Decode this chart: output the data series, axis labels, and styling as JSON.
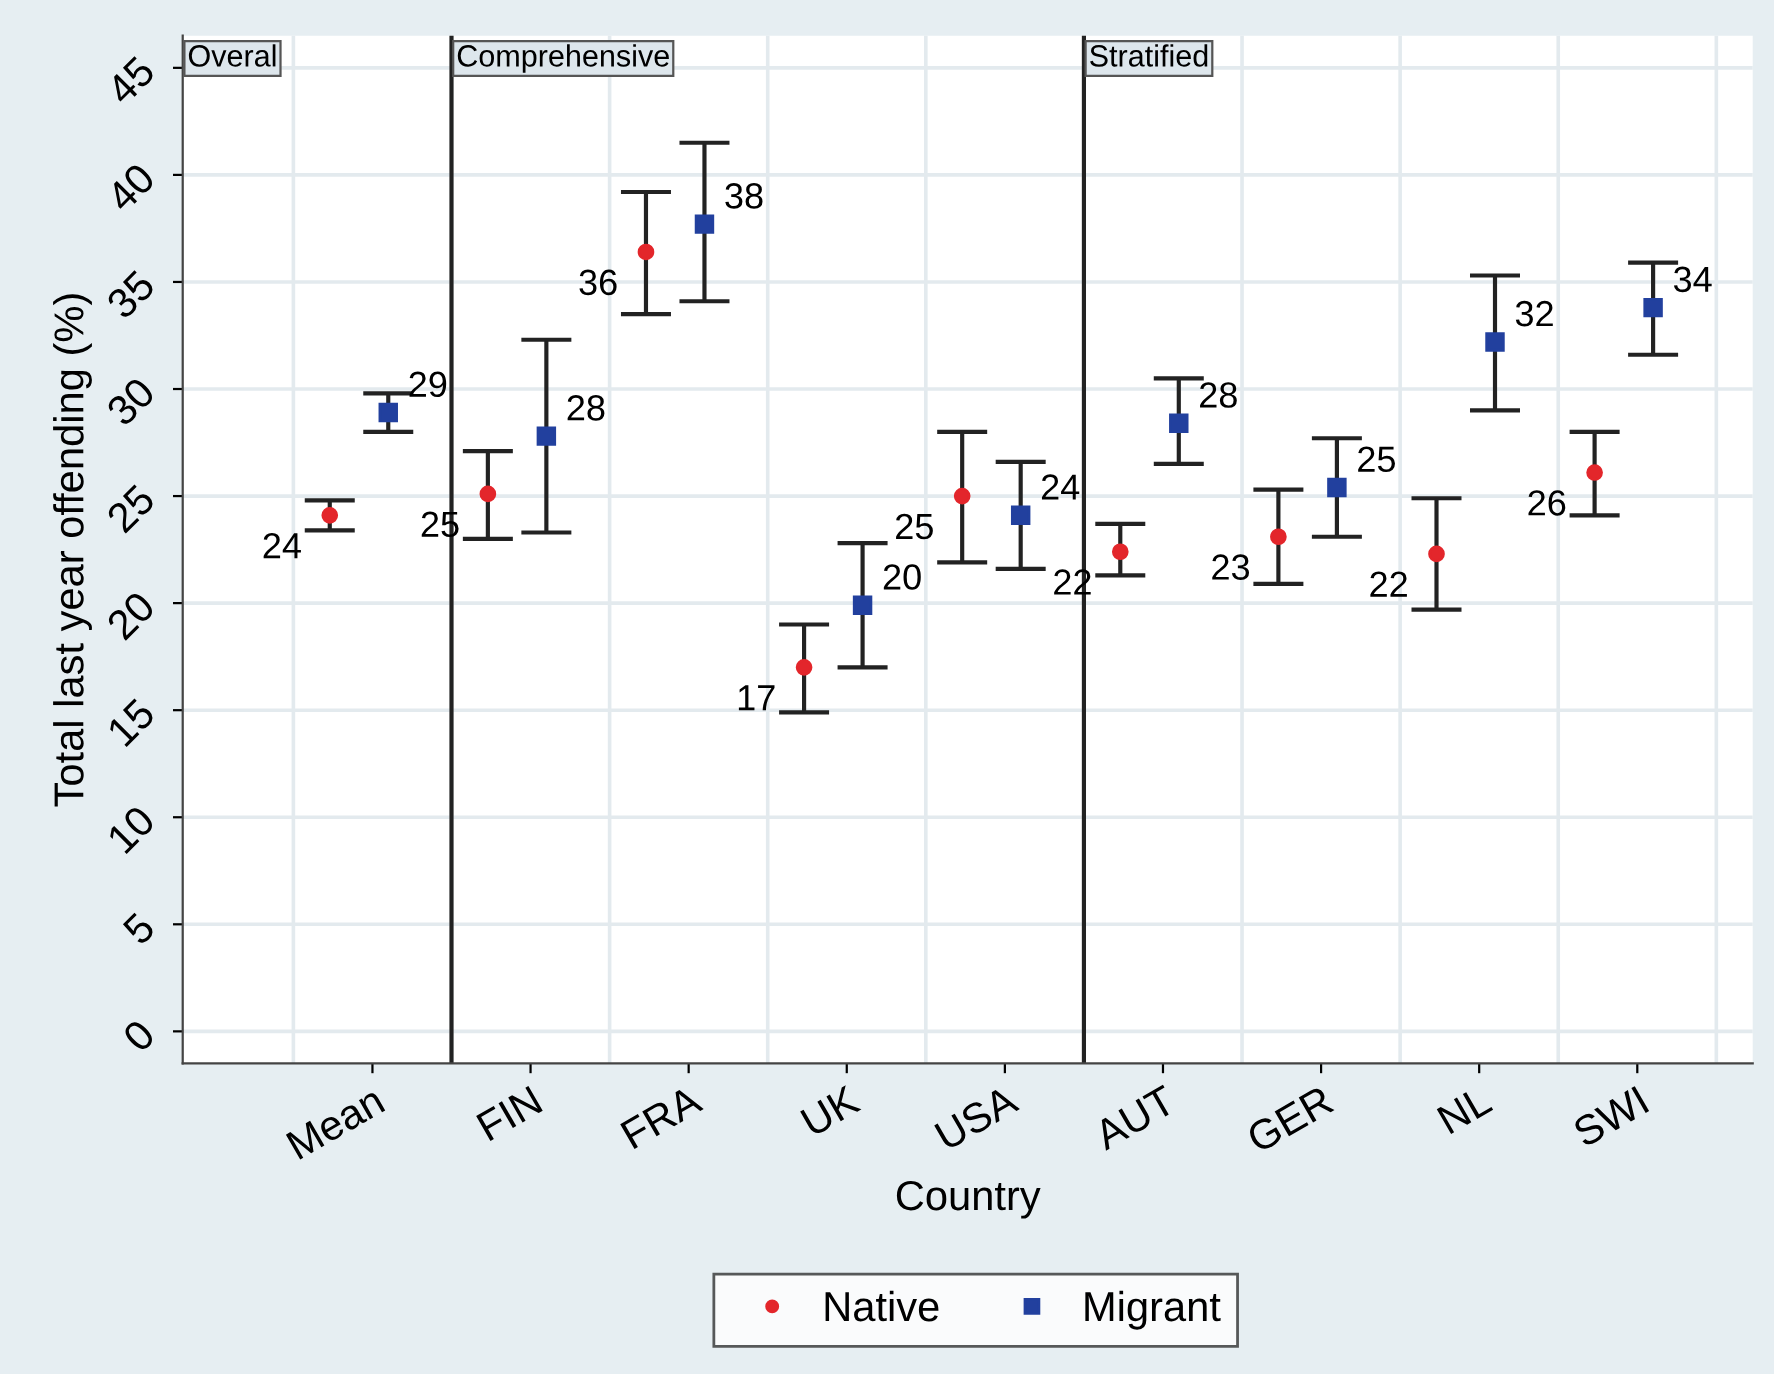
{
  "chart_data": {
    "type": "scatter",
    "xlabel": "Country",
    "ylabel": "Total last year offending (%)",
    "categories": [
      "Mean",
      "FIN",
      "FRA",
      "UK",
      "USA",
      "AUT",
      "GER",
      "NL",
      "SWI"
    ],
    "ylim": [
      -1.5,
      46.5
    ],
    "yticks": [
      0,
      5,
      10,
      15,
      20,
      25,
      30,
      35,
      40,
      45
    ],
    "grid": true,
    "legend": "bottom",
    "annotations": [
      "Overal",
      "Comprehensive",
      "Stratified"
    ],
    "series": [
      {
        "name": "Native",
        "color": "#e3262b",
        "marker": "circle",
        "values": [
          24.1,
          25.1,
          36.4,
          17.0,
          25.0,
          22.4,
          23.1,
          22.3,
          26.1
        ],
        "errors": [
          [
            23.4,
            24.8
          ],
          [
            23.0,
            27.1
          ],
          [
            33.5,
            39.2
          ],
          [
            14.9,
            19.0
          ],
          [
            21.9,
            28.0
          ],
          [
            21.3,
            23.7
          ],
          [
            20.9,
            25.3
          ],
          [
            19.7,
            24.9
          ],
          [
            24.1,
            28.0
          ]
        ],
        "value_labels": [
          "24",
          "25",
          "36",
          "17",
          "25",
          "22",
          "23",
          "22",
          "26"
        ]
      },
      {
        "name": "Migrant",
        "color": "#22409e",
        "marker": "square",
        "values": [
          28.9,
          27.8,
          37.7,
          19.9,
          24.1,
          28.4,
          25.4,
          32.2,
          33.8
        ],
        "errors": [
          [
            28.0,
            29.8
          ],
          [
            23.3,
            32.3
          ],
          [
            34.1,
            41.5
          ],
          [
            17.0,
            22.8
          ],
          [
            21.6,
            26.6
          ],
          [
            26.5,
            30.5
          ],
          [
            23.1,
            27.7
          ],
          [
            29.0,
            35.3
          ],
          [
            31.6,
            35.9
          ]
        ],
        "value_labels": [
          "29",
          "28",
          "38",
          "20",
          "24",
          "28",
          "25",
          "32",
          "34"
        ]
      }
    ]
  }
}
